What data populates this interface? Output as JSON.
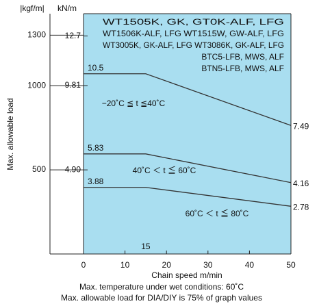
{
  "chart_data": {
    "type": "line",
    "y_label": "Max. allowable load",
    "x_label": "Chain speed  m/min",
    "y_unit": "kN/m",
    "y2_unit": "|kgf/m|",
    "x": [
      0,
      15,
      50
    ],
    "series": [
      {
        "values": [
          10.5,
          10.5,
          7.49
        ]
      },
      {
        "values": [
          5.83,
          5.83,
          4.16
        ]
      },
      {
        "values": [
          3.88,
          3.88,
          2.78
        ]
      }
    ],
    "color": "#333333",
    "plot_color": "#a9def0",
    "xlim": [
      0,
      50
    ],
    "xticks": [
      0,
      10,
      20,
      30,
      40,
      50
    ],
    "ylim": [
      0,
      14
    ],
    "yticks": [
      {
        "value": 4.9,
        "label": "4.90"
      },
      9.81,
      12.7
    ],
    "y2lim": [
      0,
      1427.6
    ],
    "y2ticks": [
      500,
      1000,
      1300
    ],
    "annotations": [
      "−20˚C ≦ t ≦40˚C",
      "40˚C ＜ t ≦ 60˚C",
      "60˚C ＜ t ≦ 80˚C"
    ],
    "model_list": [
      "WT1505K, GK, GT0K-ALF, LFG",
      "WT1506K-ALF, LFG  WT1515W, GW-ALF, LFG",
      "WT3005K, GK-ALF, LFG  WT3086K, GK-ALF, LFG",
      "BTC5-LFB, MWS, ALF",
      "BTN5-LFB, MWS, ALF"
    ],
    "notes": [
      "Max. temperature under wet conditions: 60˚C",
      "Max. allowable load for DIA/DIY is 75% of graph values"
    ]
  }
}
